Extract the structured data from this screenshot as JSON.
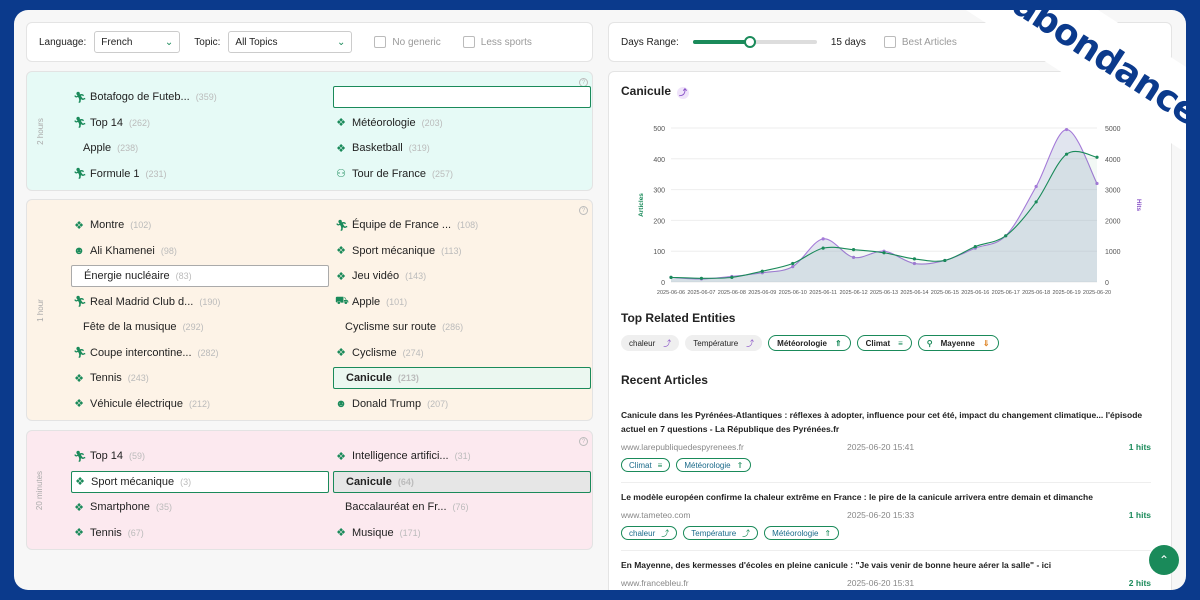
{
  "brand": "abondance",
  "filters": {
    "language_label": "Language:",
    "language_value": "French",
    "topic_label": "Topic:",
    "topic_value": "All Topics",
    "no_generic": "No generic",
    "less_sports": "Less sports"
  },
  "range": {
    "label": "Days Range:",
    "value": "15 days",
    "best_articles": "Best Articles",
    "slider_fraction": 0.46
  },
  "groups": [
    {
      "label": "2 hours",
      "left": [
        {
          "icon": "runner-icon",
          "name": "Botafogo de Futeb...",
          "count": "(359)"
        },
        {
          "icon": "runner-icon",
          "name": "Top 14",
          "count": "(262)"
        },
        {
          "icon": "",
          "name": "Apple",
          "count": "(238)"
        },
        {
          "icon": "runner-icon",
          "name": "Formule 1",
          "count": "(231)"
        }
      ],
      "right": [
        {
          "icon": "",
          "name": "",
          "count": "",
          "state": "empty-input"
        },
        {
          "icon": "topic-icon",
          "name": "Météorologie",
          "count": "(203)"
        },
        {
          "icon": "topic-icon",
          "name": "Basketball",
          "count": "(319)"
        },
        {
          "icon": "group-icon",
          "name": "Tour de France",
          "count": "(257)"
        }
      ]
    },
    {
      "label": "1 hour",
      "left": [
        {
          "icon": "topic-icon",
          "name": "Montre",
          "count": "(102)"
        },
        {
          "icon": "person-icon",
          "name": "Ali Khamenei",
          "count": "(98)"
        },
        {
          "icon": "",
          "name": "Énergie nucléaire",
          "count": "(83)",
          "state": "boxed"
        },
        {
          "icon": "runner-icon",
          "name": "Real Madrid Club d...",
          "count": "(190)"
        },
        {
          "icon": "",
          "name": "Fête de la musique",
          "count": "(292)"
        },
        {
          "icon": "runner-icon",
          "name": "Coupe intercontine...",
          "count": "(282)"
        },
        {
          "icon": "topic-icon",
          "name": "Tennis",
          "count": "(243)"
        },
        {
          "icon": "topic-icon",
          "name": "Véhicule électrique",
          "count": "(212)"
        }
      ],
      "right": [
        {
          "icon": "runner-icon",
          "name": "Équipe de France ...",
          "count": "(108)"
        },
        {
          "icon": "topic-icon",
          "name": "Sport mécanique",
          "count": "(113)"
        },
        {
          "icon": "topic-icon",
          "name": "Jeu vidéo",
          "count": "(143)"
        },
        {
          "icon": "cart-icon",
          "name": "Apple",
          "count": "(101)"
        },
        {
          "icon": "",
          "name": "Cyclisme sur route",
          "count": "(286)"
        },
        {
          "icon": "topic-icon",
          "name": "Cyclisme",
          "count": "(274)"
        },
        {
          "icon": "",
          "name": "Canicule",
          "count": "(213)",
          "state": "active-light"
        },
        {
          "icon": "person-icon",
          "name": "Donald Trump",
          "count": "(207)"
        }
      ]
    },
    {
      "label": "20 minutes",
      "left": [
        {
          "icon": "runner-icon",
          "name": "Top 14",
          "count": "(59)"
        },
        {
          "icon": "topic-icon",
          "name": "Sport mécanique",
          "count": "(3)",
          "state": "boxed-green"
        },
        {
          "icon": "topic-icon",
          "name": "Smartphone",
          "count": "(35)"
        },
        {
          "icon": "topic-icon",
          "name": "Tennis",
          "count": "(67)"
        }
      ],
      "right": [
        {
          "icon": "topic-icon",
          "name": "Intelligence artifici...",
          "count": "(31)"
        },
        {
          "icon": "",
          "name": "Canicule",
          "count": "(64)",
          "state": "active"
        },
        {
          "icon": "",
          "name": "Baccalauréat en Fr...",
          "count": "(76)"
        },
        {
          "icon": "topic-icon",
          "name": "Musique",
          "count": "(171)"
        }
      ]
    }
  ],
  "detail": {
    "title": "Canicule",
    "related_title": "Top Related Entities",
    "recent_title": "Recent Articles",
    "related": [
      {
        "name": "chaleur",
        "style": "plain",
        "arrow": "⤴"
      },
      {
        "name": "Température",
        "style": "plain",
        "arrow": "⤴"
      },
      {
        "name": "Météorologie",
        "style": "green",
        "arrow": "⇑"
      },
      {
        "name": "Climat",
        "style": "green",
        "arrow": "≡"
      },
      {
        "name": "Mayenne",
        "style": "green-pin",
        "arrow": "⇓"
      }
    ],
    "articles": [
      {
        "title": "Canicule dans les Pyrénées-Atlantiques : réflexes à adopter, influence pour cet été, impact du changement climatique... l'épisode actuel en 7 questions - La République des Pyrénées.fr",
        "source": "www.larepubliquedespyrenees.fr",
        "date": "2025-06-20 15:41",
        "hits": "1 hits",
        "tags": [
          {
            "name": "Climat",
            "arrow": "≡"
          },
          {
            "name": "Météorologie",
            "arrow": "⇑"
          }
        ]
      },
      {
        "title": "Le modèle européen confirme la chaleur extrême en France : le pire de la canicule arrivera entre demain et dimanche",
        "source": "www.tameteo.com",
        "date": "2025-06-20 15:33",
        "hits": "1 hits",
        "tags": [
          {
            "name": "chaleur",
            "arrow": "⤴"
          },
          {
            "name": "Température",
            "arrow": "⤴"
          },
          {
            "name": "Météorologie",
            "arrow": "⇑"
          }
        ]
      },
      {
        "title": "En Mayenne, des kermesses d'écoles en pleine canicule : \"Je vais venir de bonne heure aérer la salle\" - ici",
        "source": "www.francebleu.fr",
        "date": "2025-06-20 15:31",
        "hits": "2 hits",
        "tags": []
      }
    ]
  },
  "chart_data": {
    "type": "area",
    "x": [
      "2025-06-06",
      "2025-06-07",
      "2025-06-08",
      "2025-06-09",
      "2025-06-10",
      "2025-06-11",
      "2025-06-12",
      "2025-06-13",
      "2025-06-14",
      "2025-06-15",
      "2025-06-16",
      "2025-06-17",
      "2025-06-18",
      "2025-06-19",
      "2025-06-20"
    ],
    "ylabel_left": "Articles",
    "ylabel_right": "Hits",
    "ylim_left": [
      0,
      500
    ],
    "ylim_right": [
      0,
      5000
    ],
    "yticks_left": [
      "0",
      "100",
      "200",
      "300",
      "400",
      "500"
    ],
    "yticks_right": [
      "0",
      "1000",
      "2000",
      "3000",
      "4000",
      "5000"
    ],
    "series": [
      {
        "axis": "left",
        "color": "#1a8a5a",
        "values": [
          15,
          12,
          15,
          35,
          60,
          110,
          105,
          95,
          75,
          70,
          115,
          150,
          260,
          415,
          405
        ]
      },
      {
        "axis": "right",
        "color": "#a47ad8",
        "values": [
          150,
          100,
          180,
          300,
          500,
          1400,
          800,
          1000,
          600,
          700,
          1100,
          1500,
          3100,
          4950,
          3200
        ]
      }
    ],
    "grid": true
  }
}
